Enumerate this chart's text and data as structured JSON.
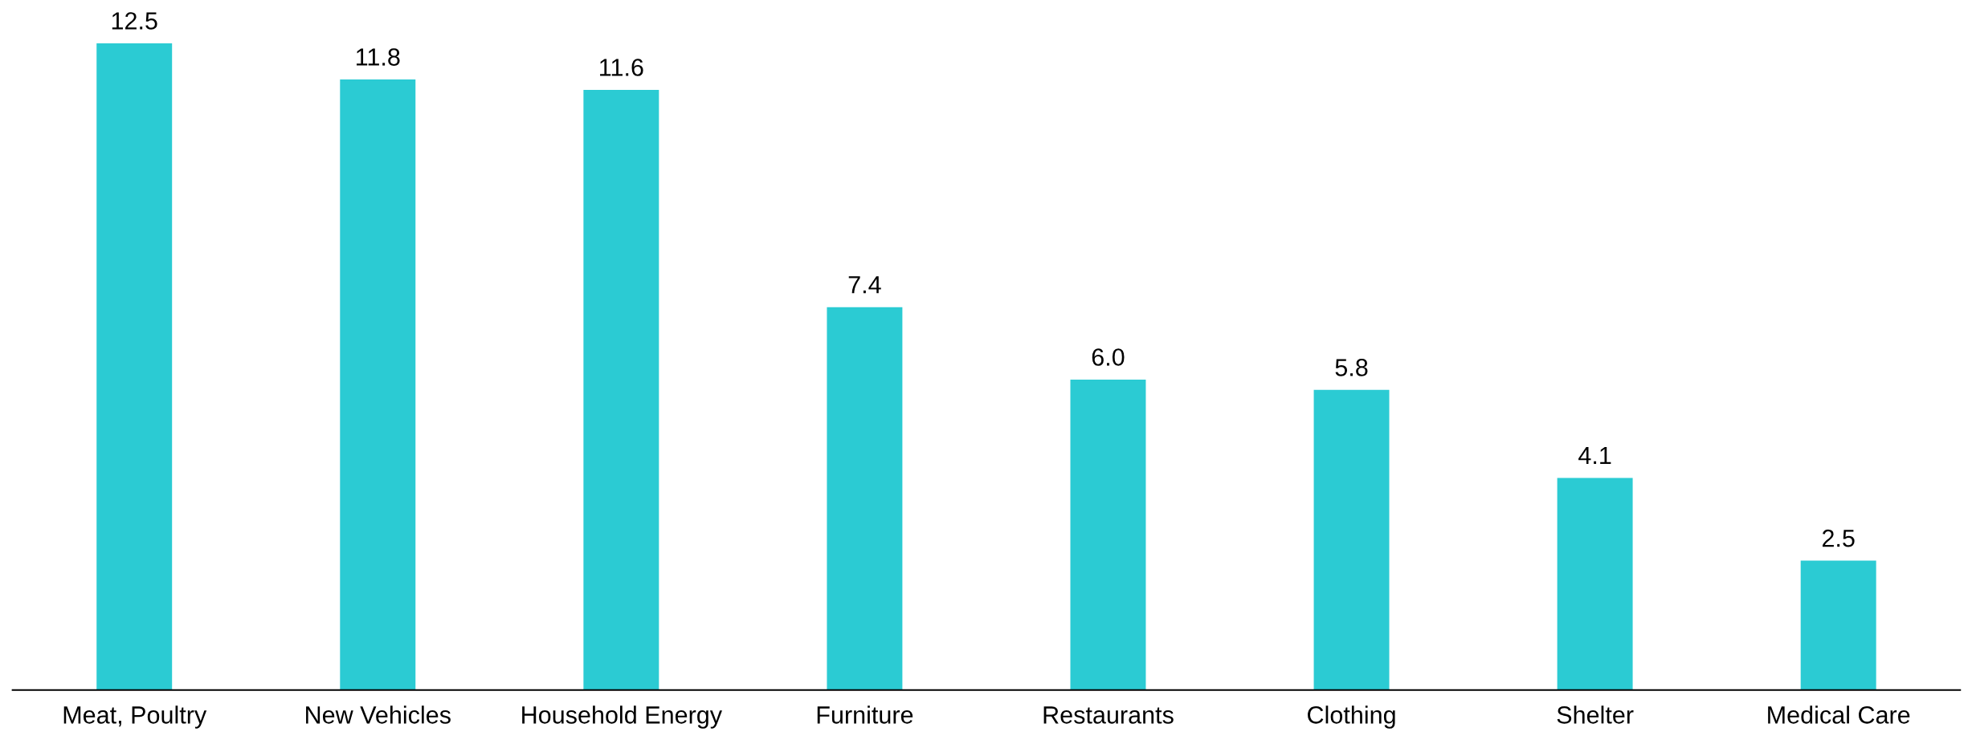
{
  "chart_data": {
    "type": "bar",
    "categories": [
      "Meat, Poultry",
      "New Vehicles",
      "Household Energy",
      "Furniture",
      "Restaurants",
      "Clothing",
      "Shelter",
      "Medical Care"
    ],
    "values": [
      12.5,
      11.8,
      11.6,
      7.4,
      6.0,
      5.8,
      4.1,
      2.5
    ],
    "value_labels": [
      "12.5",
      "11.8",
      "11.6",
      "7.4",
      "6.0",
      "5.8",
      "4.1",
      "2.5"
    ],
    "color": "#2bcbd3",
    "tick_labels": "x"
  }
}
